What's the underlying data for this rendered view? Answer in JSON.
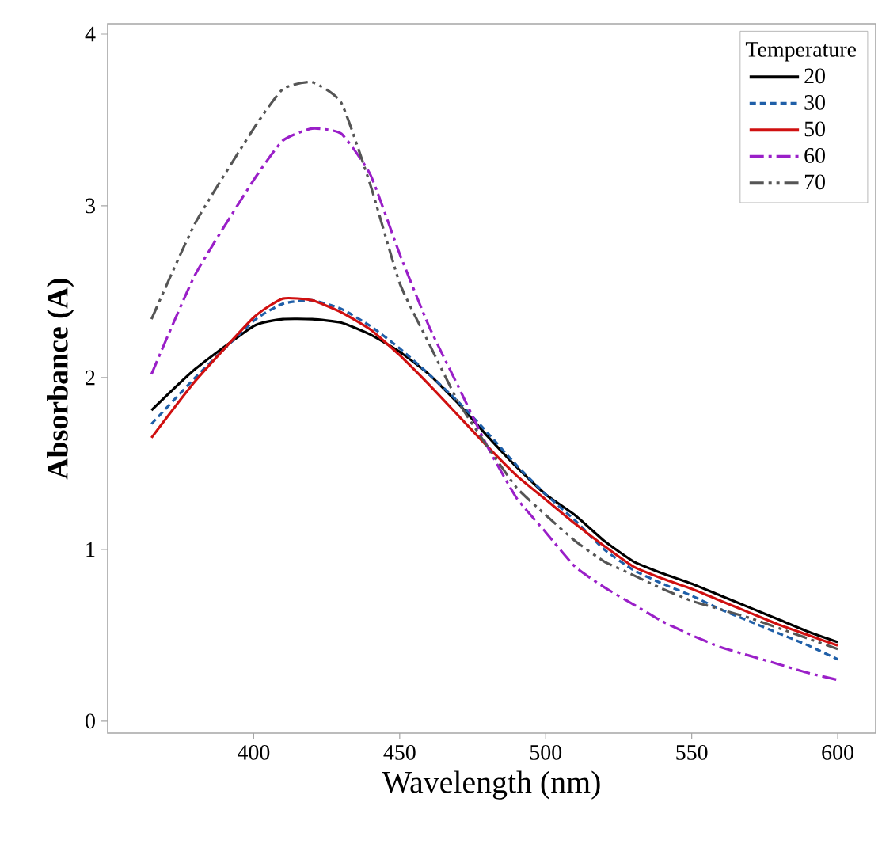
{
  "chart_data": {
    "type": "line",
    "xlabel": "Wavelength (nm)",
    "ylabel": "Absorbance (A)",
    "legend_title": "Temperature",
    "legend": "top right",
    "grid": false,
    "marker": "none",
    "xlim": [
      350,
      613
    ],
    "ylim": [
      -0.07,
      4.06
    ],
    "xticks": [
      400,
      450,
      500,
      550,
      600
    ],
    "yticks": [
      0,
      1,
      2,
      3,
      4
    ],
    "x": [
      365,
      380,
      400,
      410,
      420,
      430,
      440,
      450,
      460,
      470,
      480,
      490,
      500,
      510,
      520,
      530,
      540,
      550,
      560,
      570,
      580,
      590,
      600
    ],
    "series": [
      {
        "name": "20",
        "color": "#000000",
        "line_style": "solid",
        "values": [
          1.81,
          2.05,
          2.3,
          2.34,
          2.34,
          2.32,
          2.25,
          2.15,
          2.02,
          1.85,
          1.66,
          1.48,
          1.32,
          1.2,
          1.05,
          0.93,
          0.86,
          0.8,
          0.73,
          0.66,
          0.59,
          0.52,
          0.46
        ]
      },
      {
        "name": "30",
        "color": "#1f5fa8",
        "line_style": "dashed",
        "values": [
          1.73,
          2.0,
          2.33,
          2.43,
          2.45,
          2.4,
          2.3,
          2.17,
          2.02,
          1.86,
          1.68,
          1.49,
          1.32,
          1.17,
          1.0,
          0.88,
          0.8,
          0.73,
          0.65,
          0.58,
          0.51,
          0.44,
          0.36
        ]
      },
      {
        "name": "50",
        "color": "#d01010",
        "line_style": "solid",
        "values": [
          1.65,
          1.98,
          2.35,
          2.46,
          2.45,
          2.38,
          2.28,
          2.13,
          1.96,
          1.78,
          1.6,
          1.43,
          1.29,
          1.15,
          1.02,
          0.9,
          0.83,
          0.77,
          0.7,
          0.63,
          0.56,
          0.5,
          0.44
        ]
      },
      {
        "name": "60",
        "color": "#9a1fc8",
        "line_style": "dashdot",
        "values": [
          2.02,
          2.6,
          3.15,
          3.38,
          3.45,
          3.42,
          3.18,
          2.72,
          2.3,
          1.95,
          1.6,
          1.3,
          1.1,
          0.9,
          0.78,
          0.68,
          0.58,
          0.5,
          0.43,
          0.38,
          0.33,
          0.28,
          0.24
        ]
      },
      {
        "name": "70",
        "color": "#555555",
        "line_style": "dashdotdot",
        "values": [
          2.34,
          2.9,
          3.45,
          3.68,
          3.72,
          3.6,
          3.12,
          2.55,
          2.2,
          1.86,
          1.6,
          1.36,
          1.2,
          1.05,
          0.93,
          0.85,
          0.77,
          0.7,
          0.65,
          0.6,
          0.54,
          0.48,
          0.42
        ]
      }
    ]
  }
}
